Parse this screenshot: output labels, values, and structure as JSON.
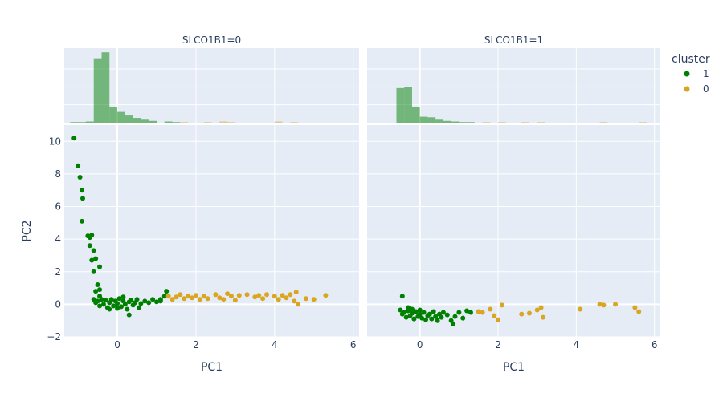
{
  "chart_data": {
    "type": "scatter",
    "facet_variable": "SLCO1B1",
    "facets": [
      {
        "title": "SLCO1B1=0",
        "series": [
          {
            "name": "1",
            "color": "#008000",
            "points": [
              [
                -1.1,
                10.2
              ],
              [
                -1.0,
                8.5
              ],
              [
                -0.95,
                7.8
              ],
              [
                -0.9,
                7.0
              ],
              [
                -0.88,
                6.5
              ],
              [
                -0.9,
                5.1
              ],
              [
                -0.75,
                4.2
              ],
              [
                -0.7,
                4.1
              ],
              [
                -0.65,
                4.25
              ],
              [
                -0.7,
                3.6
              ],
              [
                -0.6,
                3.3
              ],
              [
                -0.65,
                2.7
              ],
              [
                -0.55,
                2.8
              ],
              [
                -0.45,
                2.3
              ],
              [
                -0.6,
                2.0
              ],
              [
                -0.5,
                1.2
              ],
              [
                -0.55,
                0.8
              ],
              [
                -0.45,
                0.9
              ],
              [
                -0.6,
                0.3
              ],
              [
                -0.55,
                0.1
              ],
              [
                -0.5,
                0.2
              ],
              [
                -0.45,
                -0.1
              ],
              [
                -0.4,
                0.3
              ],
              [
                -0.35,
                0.0
              ],
              [
                -0.3,
                0.25
              ],
              [
                -0.25,
                -0.2
              ],
              [
                -0.2,
                0.1
              ],
              [
                -0.15,
                0.3
              ],
              [
                -0.1,
                -0.1
              ],
              [
                -0.05,
                0.2
              ],
              [
                0.0,
                0.05
              ],
              [
                0.05,
                0.35
              ],
              [
                0.1,
                -0.15
              ],
              [
                0.15,
                0.2
              ],
              [
                0.2,
                0.0
              ],
              [
                0.25,
                -0.3
              ],
              [
                0.3,
                0.15
              ],
              [
                0.35,
                0.25
              ],
              [
                0.4,
                -0.05
              ],
              [
                0.45,
                0.1
              ],
              [
                0.5,
                0.3
              ],
              [
                0.55,
                -0.2
              ],
              [
                0.6,
                0.05
              ],
              [
                0.7,
                0.2
              ],
              [
                0.8,
                0.1
              ],
              [
                0.9,
                0.3
              ],
              [
                1.0,
                0.15
              ],
              [
                1.1,
                0.2
              ],
              [
                0.3,
                -0.65
              ],
              [
                -0.45,
                0.5
              ],
              [
                -0.2,
                -0.3
              ],
              [
                0.0,
                -0.25
              ],
              [
                0.15,
                0.45
              ],
              [
                1.25,
                0.8
              ],
              [
                1.2,
                0.5
              ],
              [
                1.1,
                0.3
              ]
            ]
          },
          {
            "name": "0",
            "color": "#daa520",
            "points": [
              [
                1.3,
                0.5
              ],
              [
                1.4,
                0.3
              ],
              [
                1.5,
                0.45
              ],
              [
                1.6,
                0.6
              ],
              [
                1.7,
                0.35
              ],
              [
                1.8,
                0.5
              ],
              [
                1.9,
                0.4
              ],
              [
                2.0,
                0.55
              ],
              [
                2.1,
                0.3
              ],
              [
                2.2,
                0.5
              ],
              [
                2.3,
                0.35
              ],
              [
                2.5,
                0.6
              ],
              [
                2.6,
                0.4
              ],
              [
                2.7,
                0.3
              ],
              [
                2.8,
                0.65
              ],
              [
                2.9,
                0.5
              ],
              [
                3.0,
                0.25
              ],
              [
                3.1,
                0.55
              ],
              [
                3.3,
                0.6
              ],
              [
                3.5,
                0.45
              ],
              [
                3.6,
                0.55
              ],
              [
                3.7,
                0.35
              ],
              [
                3.8,
                0.6
              ],
              [
                4.0,
                0.5
              ],
              [
                4.1,
                0.3
              ],
              [
                4.2,
                0.55
              ],
              [
                4.3,
                0.4
              ],
              [
                4.4,
                0.6
              ],
              [
                4.5,
                0.2
              ],
              [
                4.55,
                0.75
              ],
              [
                4.6,
                0.0
              ],
              [
                4.8,
                0.35
              ],
              [
                5.0,
                0.3
              ],
              [
                5.3,
                0.55
              ]
            ]
          }
        ],
        "histogram": {
          "bin_width": 0.2,
          "bins": [
            {
              "x0": -1.2,
              "series": "1",
              "count": 1
            },
            {
              "x0": -1.0,
              "series": "1",
              "count": 1
            },
            {
              "x0": -0.8,
              "series": "1",
              "count": 2
            },
            {
              "x0": -0.6,
              "series": "1",
              "count": 108
            },
            {
              "x0": -0.4,
              "series": "1",
              "count": 118
            },
            {
              "x0": -0.2,
              "series": "1",
              "count": 26
            },
            {
              "x0": 0.0,
              "series": "1",
              "count": 18
            },
            {
              "x0": 0.2,
              "series": "1",
              "count": 12
            },
            {
              "x0": 0.4,
              "series": "1",
              "count": 8
            },
            {
              "x0": 0.6,
              "series": "1",
              "count": 5
            },
            {
              "x0": 0.8,
              "series": "1",
              "count": 3
            },
            {
              "x0": 1.2,
              "series": "1",
              "count": 2
            },
            {
              "x0": 1.4,
              "series": "1",
              "count": 1
            },
            {
              "x0": 1.6,
              "series": "0",
              "count": 1
            },
            {
              "x0": 2.2,
              "series": "0",
              "count": 1
            },
            {
              "x0": 2.6,
              "series": "0",
              "count": 2
            },
            {
              "x0": 2.8,
              "series": "0",
              "count": 1
            },
            {
              "x0": 4.0,
              "series": "0",
              "count": 2
            },
            {
              "x0": 4.4,
              "series": "0",
              "count": 1
            }
          ]
        }
      },
      {
        "title": "SLCO1B1=1",
        "series": [
          {
            "name": "1",
            "color": "#008000",
            "points": [
              [
                -0.45,
                0.5
              ],
              [
                -0.5,
                -0.35
              ],
              [
                -0.45,
                -0.6
              ],
              [
                -0.4,
                -0.5
              ],
              [
                -0.35,
                -0.8
              ],
              [
                -0.3,
                -0.4
              ],
              [
                -0.25,
                -0.7
              ],
              [
                -0.2,
                -0.55
              ],
              [
                -0.15,
                -0.9
              ],
              [
                -0.1,
                -0.45
              ],
              [
                -0.05,
                -0.75
              ],
              [
                0.0,
                -0.6
              ],
              [
                0.05,
                -0.85
              ],
              [
                0.1,
                -0.5
              ],
              [
                0.15,
                -0.95
              ],
              [
                0.2,
                -0.7
              ],
              [
                0.25,
                -0.6
              ],
              [
                0.3,
                -0.9
              ],
              [
                0.35,
                -0.45
              ],
              [
                0.4,
                -0.75
              ],
              [
                0.45,
                -1.0
              ],
              [
                0.5,
                -0.6
              ],
              [
                0.55,
                -0.8
              ],
              [
                0.6,
                -0.5
              ],
              [
                0.7,
                -0.65
              ],
              [
                0.8,
                -1.0
              ],
              [
                0.85,
                -1.2
              ],
              [
                0.9,
                -0.75
              ],
              [
                1.0,
                -0.5
              ],
              [
                1.1,
                -0.85
              ],
              [
                1.2,
                -0.4
              ],
              [
                1.3,
                -0.5
              ],
              [
                -0.3,
                -0.2
              ],
              [
                -0.2,
                -0.3
              ],
              [
                0.0,
                -0.35
              ]
            ]
          },
          {
            "name": "0",
            "color": "#daa520",
            "points": [
              [
                1.5,
                -0.45
              ],
              [
                1.6,
                -0.5
              ],
              [
                1.8,
                -0.3
              ],
              [
                1.9,
                -0.7
              ],
              [
                2.0,
                -0.95
              ],
              [
                2.1,
                -0.05
              ],
              [
                2.6,
                -0.6
              ],
              [
                2.8,
                -0.55
              ],
              [
                3.0,
                -0.35
              ],
              [
                3.1,
                -0.2
              ],
              [
                3.15,
                -0.8
              ],
              [
                4.1,
                -0.3
              ],
              [
                4.6,
                0.0
              ],
              [
                4.7,
                -0.05
              ],
              [
                5.0,
                0.0
              ],
              [
                5.5,
                -0.2
              ],
              [
                5.6,
                -0.45
              ]
            ]
          }
        ],
        "histogram": {
          "bin_width": 0.2,
          "bins": [
            {
              "x0": -0.6,
              "series": "1",
              "count": 58
            },
            {
              "x0": -0.4,
              "series": "1",
              "count": 60
            },
            {
              "x0": -0.2,
              "series": "1",
              "count": 26
            },
            {
              "x0": 0.0,
              "series": "1",
              "count": 10
            },
            {
              "x0": 0.2,
              "series": "1",
              "count": 9
            },
            {
              "x0": 0.4,
              "series": "1",
              "count": 5
            },
            {
              "x0": 0.6,
              "series": "1",
              "count": 3
            },
            {
              "x0": 0.8,
              "series": "1",
              "count": 2
            },
            {
              "x0": 1.0,
              "series": "1",
              "count": 1
            },
            {
              "x0": 1.2,
              "series": "1",
              "count": 1
            },
            {
              "x0": 1.6,
              "series": "0",
              "count": 1
            },
            {
              "x0": 2.0,
              "series": "0",
              "count": 1
            },
            {
              "x0": 2.6,
              "series": "0",
              "count": 1
            },
            {
              "x0": 3.0,
              "series": "0",
              "count": 1
            },
            {
              "x0": 4.6,
              "series": "0",
              "count": 1
            },
            {
              "x0": 5.6,
              "series": "0",
              "count": 1
            }
          ]
        }
      }
    ],
    "xlabel": "PC1",
    "ylabel": "PC2",
    "xlim": [
      -1.35,
      6.15
    ],
    "ylim": [
      -2.0,
      11.0
    ],
    "hist_ymax": 125,
    "xticks": [
      0,
      2,
      4,
      6
    ],
    "yticks": [
      -2,
      0,
      2,
      4,
      6,
      8,
      10
    ],
    "legend": {
      "title": "cluster",
      "position": "top-right",
      "items": [
        {
          "label": "1",
          "color": "#008000"
        },
        {
          "label": "0",
          "color": "#daa520"
        }
      ]
    },
    "grid": true,
    "background": "#e5ecf6"
  }
}
